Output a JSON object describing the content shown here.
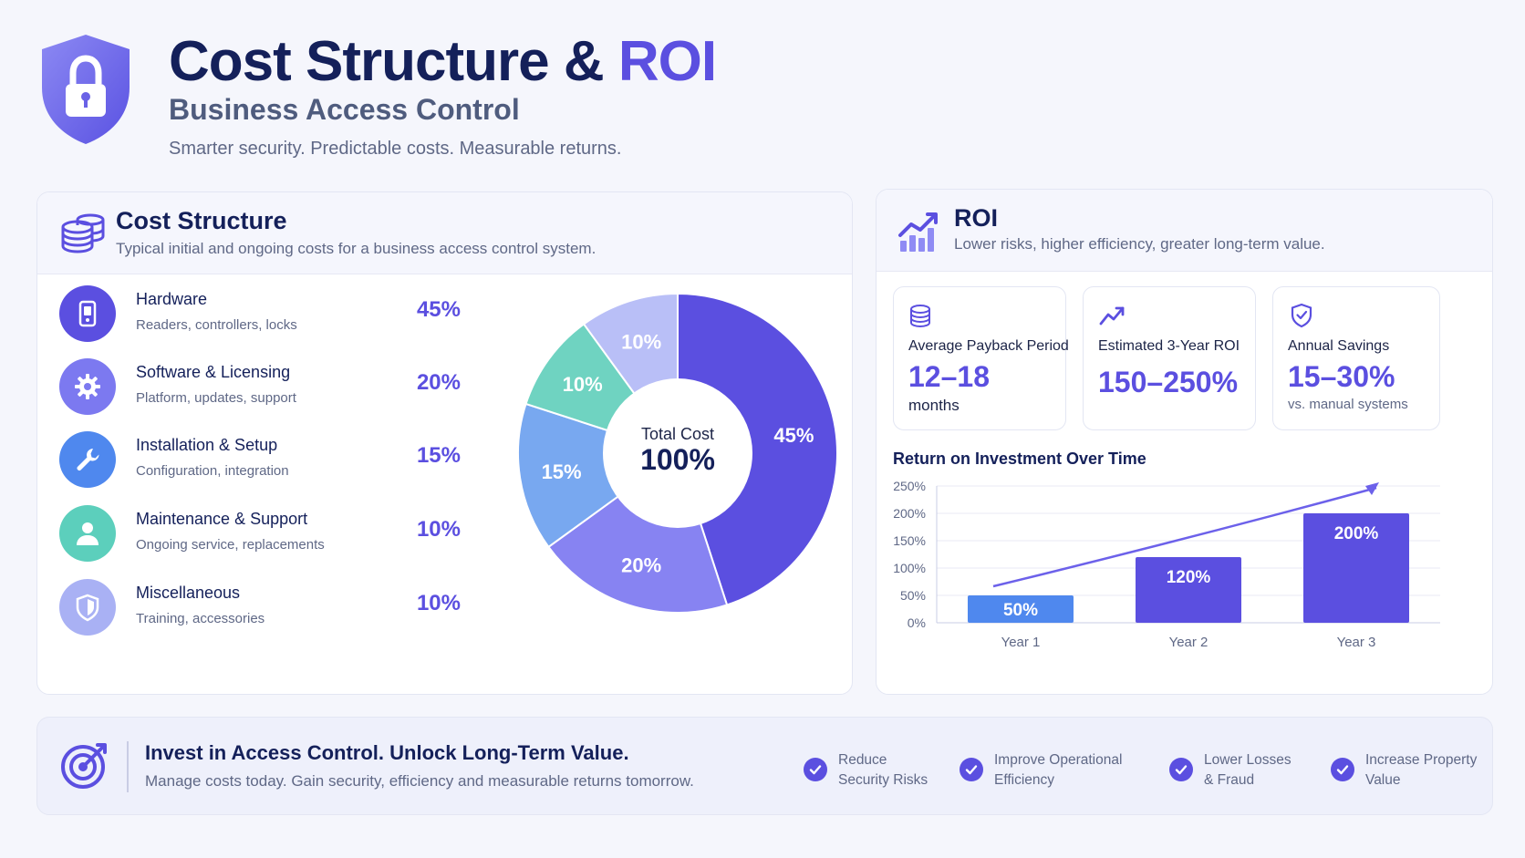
{
  "header": {
    "title_main": "Cost Structure &",
    "title_accent": "ROI",
    "subtitle": "Business Access Control",
    "tagline": "Smarter security. Predictable costs. Measurable returns."
  },
  "cost": {
    "title": "Cost Structure",
    "description": "Typical initial and ongoing costs for a business access control system.",
    "items": [
      {
        "name": "Hardware",
        "sub": "Readers, controllers, locks",
        "pct": "45%",
        "icon": "device-icon",
        "color": "#5b4fe0"
      },
      {
        "name": "Software & Licensing",
        "sub": "Platform, updates, support",
        "pct": "20%",
        "icon": "gear-icon",
        "color": "#7c79f0"
      },
      {
        "name": "Installation & Setup",
        "sub": "Configuration, integration",
        "pct": "15%",
        "icon": "wrench-icon",
        "color": "#4f88ee"
      },
      {
        "name": "Maintenance & Support",
        "sub": "Ongoing service, replacements",
        "pct": "10%",
        "icon": "person-icon",
        "color": "#5ccfbc"
      },
      {
        "name": "Miscellaneous",
        "sub": "Training, accessories",
        "pct": "10%",
        "icon": "shield-icon",
        "color": "#a9b1f4"
      }
    ],
    "center_label": "Total Cost",
    "center_value": "100%"
  },
  "roi": {
    "title": "ROI",
    "description": "Lower risks, higher efficiency, greater long-term value.",
    "kpis": [
      {
        "label": "Average Payback Period",
        "value": "12–18",
        "unit": "months",
        "icon": "coins-icon"
      },
      {
        "label": "Estimated 3-Year ROI",
        "value": "150–250%",
        "unit": "",
        "icon": "trend-up-icon"
      },
      {
        "label": "Annual Savings",
        "value": "15–30%",
        "unit": "vs. manual systems",
        "icon": "shield-check-icon"
      }
    ],
    "chart_title": "Return on Investment Over Time"
  },
  "chart_data": [
    {
      "type": "pie",
      "categories": [
        "Hardware",
        "Software & Licensing",
        "Installation & Setup",
        "Maintenance & Support",
        "Miscellaneous"
      ],
      "values": [
        45,
        20,
        15,
        10,
        10
      ],
      "labels": [
        "45%",
        "20%",
        "15%",
        "10%",
        "10%"
      ],
      "colors": [
        "#5b4fe0",
        "#8783f2",
        "#78a8f0",
        "#6fd3c1",
        "#b9bff7"
      ]
    },
    {
      "type": "bar",
      "categories": [
        "Year 1",
        "Year 2",
        "Year 3"
      ],
      "values": [
        50,
        120,
        200
      ],
      "labels": [
        "50%",
        "120%",
        "200%"
      ],
      "colors": [
        "#4f88ee",
        "#5b4fe0",
        "#5b4fe0"
      ],
      "ylim": [
        0,
        250
      ],
      "yticks": [
        "0%",
        "50%",
        "100%",
        "150%",
        "200%",
        "250%"
      ],
      "trend_line": true,
      "grid": true
    }
  ],
  "footer": {
    "title": "Invest in Access Control. Unlock Long-Term Value.",
    "description": "Manage costs today. Gain security, efficiency and measurable returns tomorrow.",
    "benefits": [
      {
        "line1": "Reduce",
        "line2": "Security Risks"
      },
      {
        "line1": "Improve Operational",
        "line2": "Efficiency"
      },
      {
        "line1": "Lower Losses",
        "line2": "& Fraud"
      },
      {
        "line1": "Increase Property",
        "line2": "Value"
      }
    ]
  }
}
